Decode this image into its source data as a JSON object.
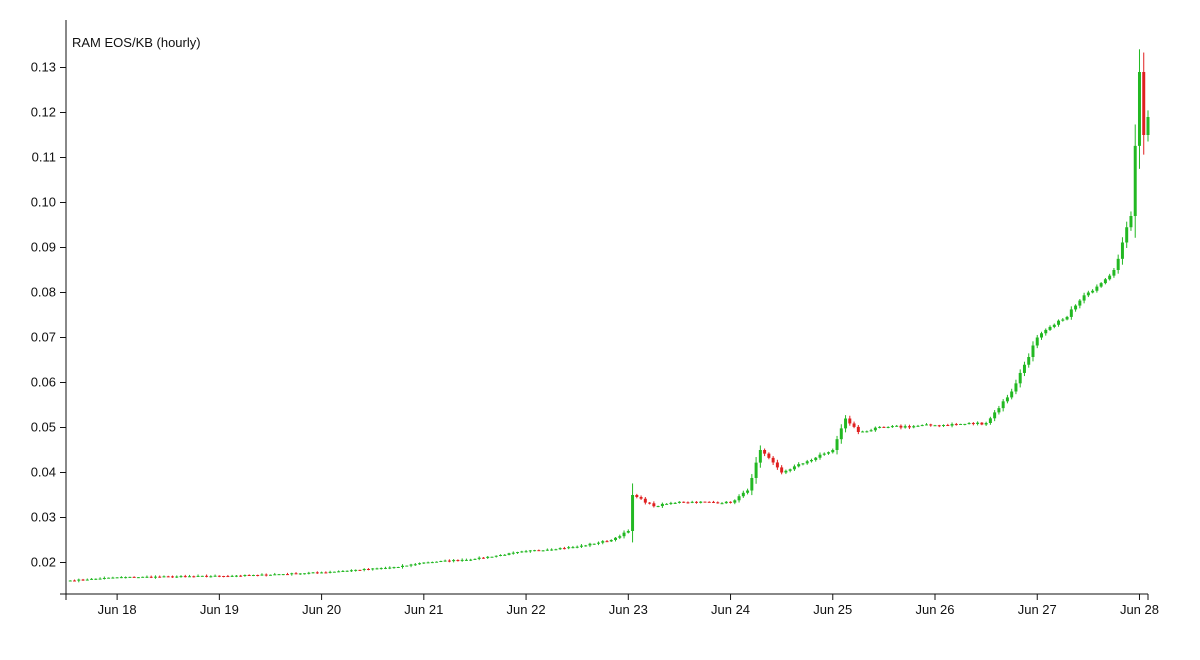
{
  "chart_data": {
    "type": "candlestick",
    "title": "RAM EOS/KB (hourly)",
    "xlabel": "",
    "ylabel": "",
    "x_range": [
      "2018-06-17T12:00",
      "2018-06-28T02:00"
    ],
    "ylim": [
      0.013,
      0.137
    ],
    "grid": false,
    "y_ticks": [
      {
        "value": 0.02,
        "label": "0.02"
      },
      {
        "value": 0.03,
        "label": "0.03"
      },
      {
        "value": 0.04,
        "label": "0.04"
      },
      {
        "value": 0.05,
        "label": "0.05"
      },
      {
        "value": 0.06,
        "label": "0.06"
      },
      {
        "value": 0.07,
        "label": "0.07"
      },
      {
        "value": 0.08,
        "label": "0.08"
      },
      {
        "value": 0.09,
        "label": "0.09"
      },
      {
        "value": 0.1,
        "label": "0.10"
      },
      {
        "value": 0.11,
        "label": "0.11"
      },
      {
        "value": 0.12,
        "label": "0.12"
      },
      {
        "value": 0.13,
        "label": "0.13"
      }
    ],
    "x_ticks": [
      {
        "value": "2018-06-18",
        "label": "Jun 18"
      },
      {
        "value": "2018-06-19",
        "label": "Jun 19"
      },
      {
        "value": "2018-06-20",
        "label": "Jun 20"
      },
      {
        "value": "2018-06-21",
        "label": "Jun 21"
      },
      {
        "value": "2018-06-22",
        "label": "Jun 22"
      },
      {
        "value": "2018-06-23",
        "label": "Jun 23"
      },
      {
        "value": "2018-06-24",
        "label": "Jun 24"
      },
      {
        "value": "2018-06-25",
        "label": "Jun 25"
      },
      {
        "value": "2018-06-26",
        "label": "Jun 26"
      },
      {
        "value": "2018-06-27",
        "label": "Jun 27"
      },
      {
        "value": "2018-06-28",
        "label": "Jun 28"
      }
    ],
    "colors": {
      "up": "#22b822",
      "down": "#e02020",
      "axis": "#111111"
    },
    "series_shape": "key points of close price; hourly candles are interpolated between these points",
    "series": [
      {
        "name": "close",
        "points": [
          {
            "t": "2018-06-17T13:00",
            "close": 0.016
          },
          {
            "t": "2018-06-18T00:00",
            "close": 0.0167
          },
          {
            "t": "2018-06-19T00:00",
            "close": 0.017
          },
          {
            "t": "2018-06-19T09:00",
            "close": 0.0172
          },
          {
            "t": "2018-06-20T00:00",
            "close": 0.0178
          },
          {
            "t": "2018-06-20T18:00",
            "close": 0.019
          },
          {
            "t": "2018-06-21T00:00",
            "close": 0.02
          },
          {
            "t": "2018-06-21T12:00",
            "close": 0.0208
          },
          {
            "t": "2018-06-22T00:00",
            "close": 0.0225
          },
          {
            "t": "2018-06-22T12:00",
            "close": 0.0235
          },
          {
            "t": "2018-06-22T20:00",
            "close": 0.025
          },
          {
            "t": "2018-06-23T00:00",
            "close": 0.027
          },
          {
            "t": "2018-06-23T01:00",
            "close": 0.035
          },
          {
            "t": "2018-06-23T06:00",
            "close": 0.0325
          },
          {
            "t": "2018-06-23T12:00",
            "close": 0.0335
          },
          {
            "t": "2018-06-24T00:00",
            "close": 0.0333
          },
          {
            "t": "2018-06-24T04:00",
            "close": 0.036
          },
          {
            "t": "2018-06-24T07:00",
            "close": 0.045
          },
          {
            "t": "2018-06-24T12:00",
            "close": 0.04
          },
          {
            "t": "2018-06-24T18:00",
            "close": 0.0425
          },
          {
            "t": "2018-06-25T00:00",
            "close": 0.045
          },
          {
            "t": "2018-06-25T03:00",
            "close": 0.052
          },
          {
            "t": "2018-06-25T06:00",
            "close": 0.049
          },
          {
            "t": "2018-06-25T12:00",
            "close": 0.05
          },
          {
            "t": "2018-06-26T00:00",
            "close": 0.0505
          },
          {
            "t": "2018-06-26T12:00",
            "close": 0.051
          },
          {
            "t": "2018-06-26T18:00",
            "close": 0.058
          },
          {
            "t": "2018-06-27T00:00",
            "close": 0.07
          },
          {
            "t": "2018-06-27T06:00",
            "close": 0.074
          },
          {
            "t": "2018-06-27T12:00",
            "close": 0.08
          },
          {
            "t": "2018-06-27T18:00",
            "close": 0.085
          },
          {
            "t": "2018-06-27T22:00",
            "close": 0.097
          },
          {
            "t": "2018-06-28T00:00",
            "close": 0.129
          },
          {
            "t": "2018-06-28T01:00",
            "close": 0.115
          },
          {
            "t": "2018-06-28T02:00",
            "close": 0.119
          }
        ]
      }
    ]
  }
}
